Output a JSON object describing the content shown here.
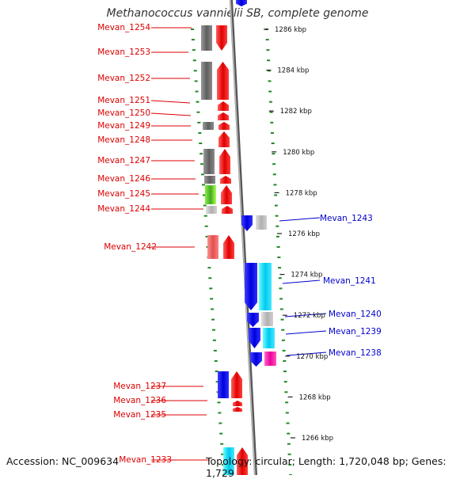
{
  "title": "Methanococcus vannielii SB, complete genome",
  "footer": {
    "accession": "Accession: NC_009634",
    "summary": "Topology: circular; Length: 1,720,048 bp; Genes: 1,729"
  },
  "colors": {
    "forward_label": "#dd0000",
    "reverse_label": "#0000cc",
    "ruler_tick": "#228822",
    "axis": "#888888"
  },
  "kbp_ticks": [
    {
      "label": "1286 kbp",
      "kbp": 1286
    },
    {
      "label": "1284 kbp",
      "kbp": 1284
    },
    {
      "label": "1282 kbp",
      "kbp": 1282
    },
    {
      "label": "1280 kbp",
      "kbp": 1280
    },
    {
      "label": "1278 kbp",
      "kbp": 1278
    },
    {
      "label": "1276 kbp",
      "kbp": 1276
    },
    {
      "label": "1274 kbp",
      "kbp": 1274
    },
    {
      "label": "1272 kbp",
      "kbp": 1272
    },
    {
      "label": "1270 kbp",
      "kbp": 1270
    },
    {
      "label": "1268 kbp",
      "kbp": 1268
    },
    {
      "label": "1266 kbp",
      "kbp": 1266
    }
  ],
  "genes_left": [
    {
      "label": "Mevan_1254"
    },
    {
      "label": "Mevan_1253"
    },
    {
      "label": "Mevan_1252"
    },
    {
      "label": "Mevan_1251"
    },
    {
      "label": "Mevan_1250"
    },
    {
      "label": "Mevan_1249"
    },
    {
      "label": "Mevan_1248"
    },
    {
      "label": "Mevan_1247"
    },
    {
      "label": "Mevan_1246"
    },
    {
      "label": "Mevan_1245"
    },
    {
      "label": "Mevan_1244"
    },
    {
      "label": "Mevan_1242"
    },
    {
      "label": "Mevan_1237"
    },
    {
      "label": "Mevan_1236"
    },
    {
      "label": "Mevan_1235"
    },
    {
      "label": "Mevan_1233"
    }
  ],
  "genes_right": [
    {
      "label": "Mevan_1243"
    },
    {
      "label": "Mevan_1241"
    },
    {
      "label": "Mevan_1240"
    },
    {
      "label": "Mevan_1239"
    },
    {
      "label": "Mevan_1238"
    }
  ]
}
